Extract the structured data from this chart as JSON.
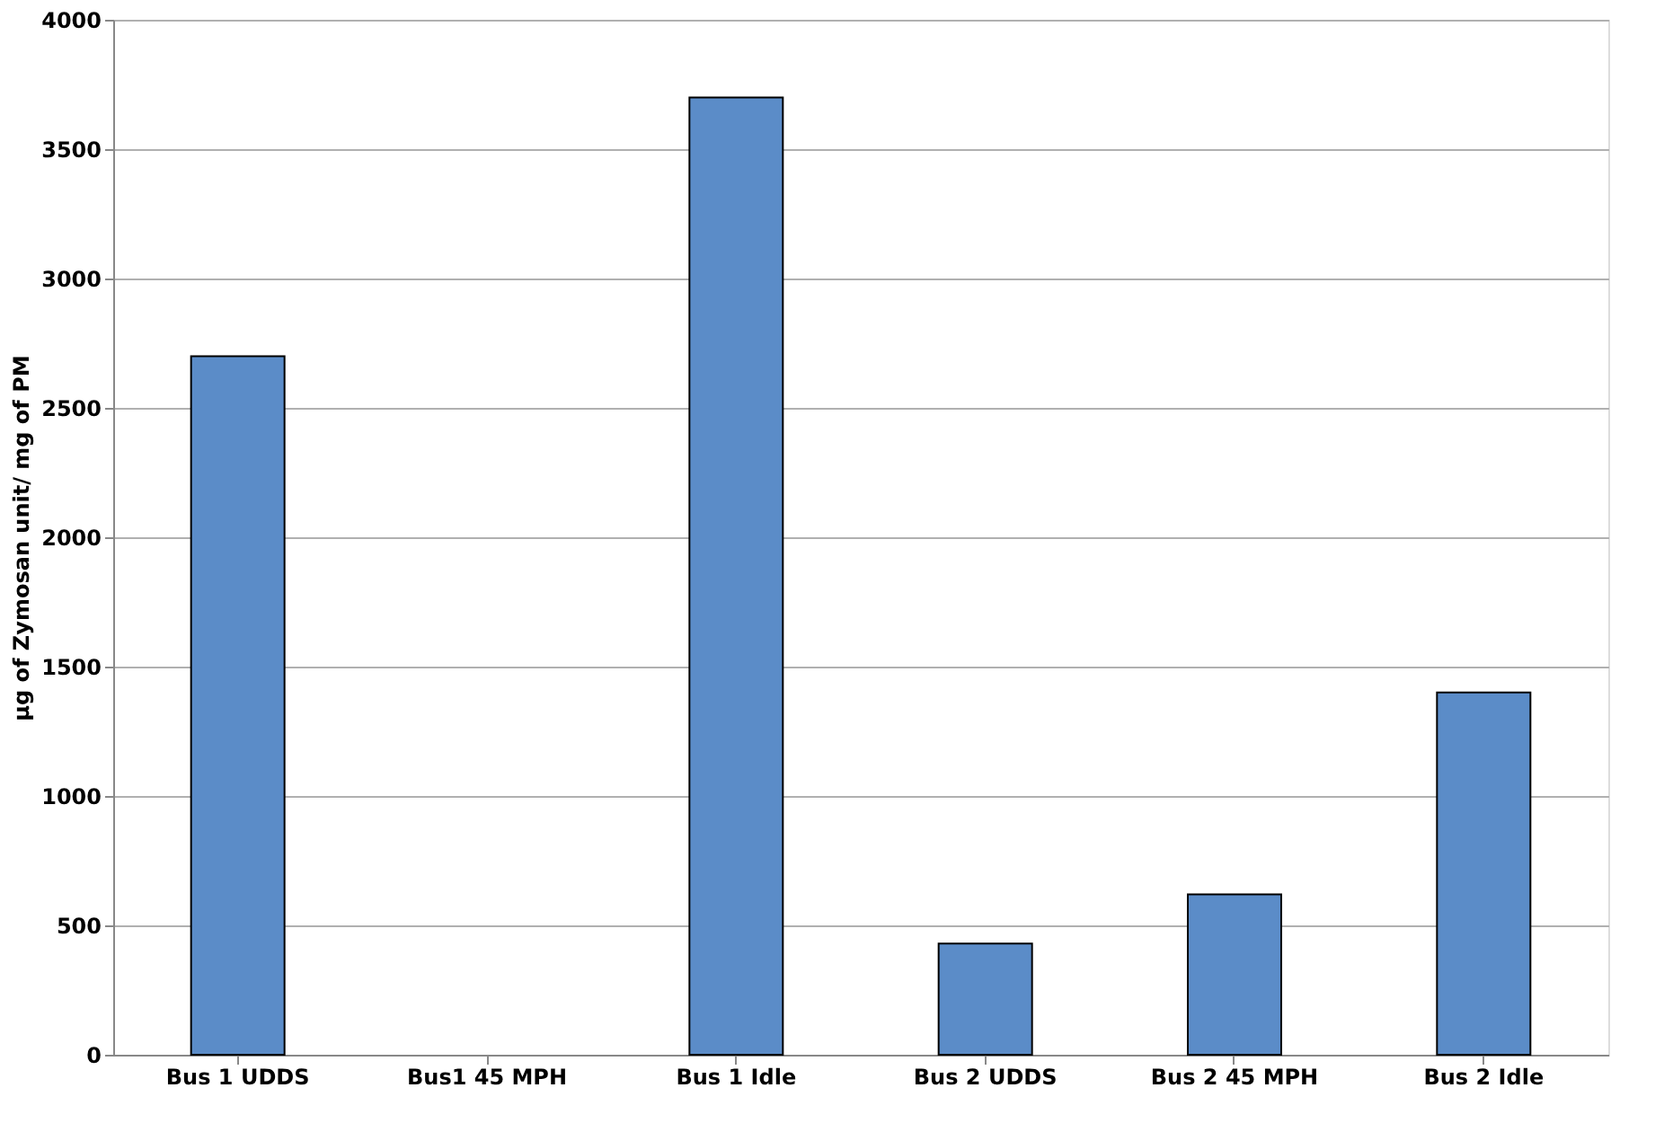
{
  "chart_data": {
    "type": "bar",
    "ylabel": "µg of Zymosan unit/ mg of PM",
    "categories": [
      "Bus 1 UDDS",
      "Bus1 45 MPH",
      "Bus 1 Idle",
      "Bus 2 UDDS",
      "Bus 2 45 MPH",
      "Bus 2 Idle"
    ],
    "values": [
      2700,
      null,
      3700,
      430,
      620,
      1400
    ],
    "color": "#5b8cc8",
    "ylim": [
      0,
      4000
    ],
    "yticks": [
      0,
      500,
      1000,
      1500,
      2000,
      2500,
      3000,
      3500,
      4000
    ],
    "grid": "y"
  }
}
